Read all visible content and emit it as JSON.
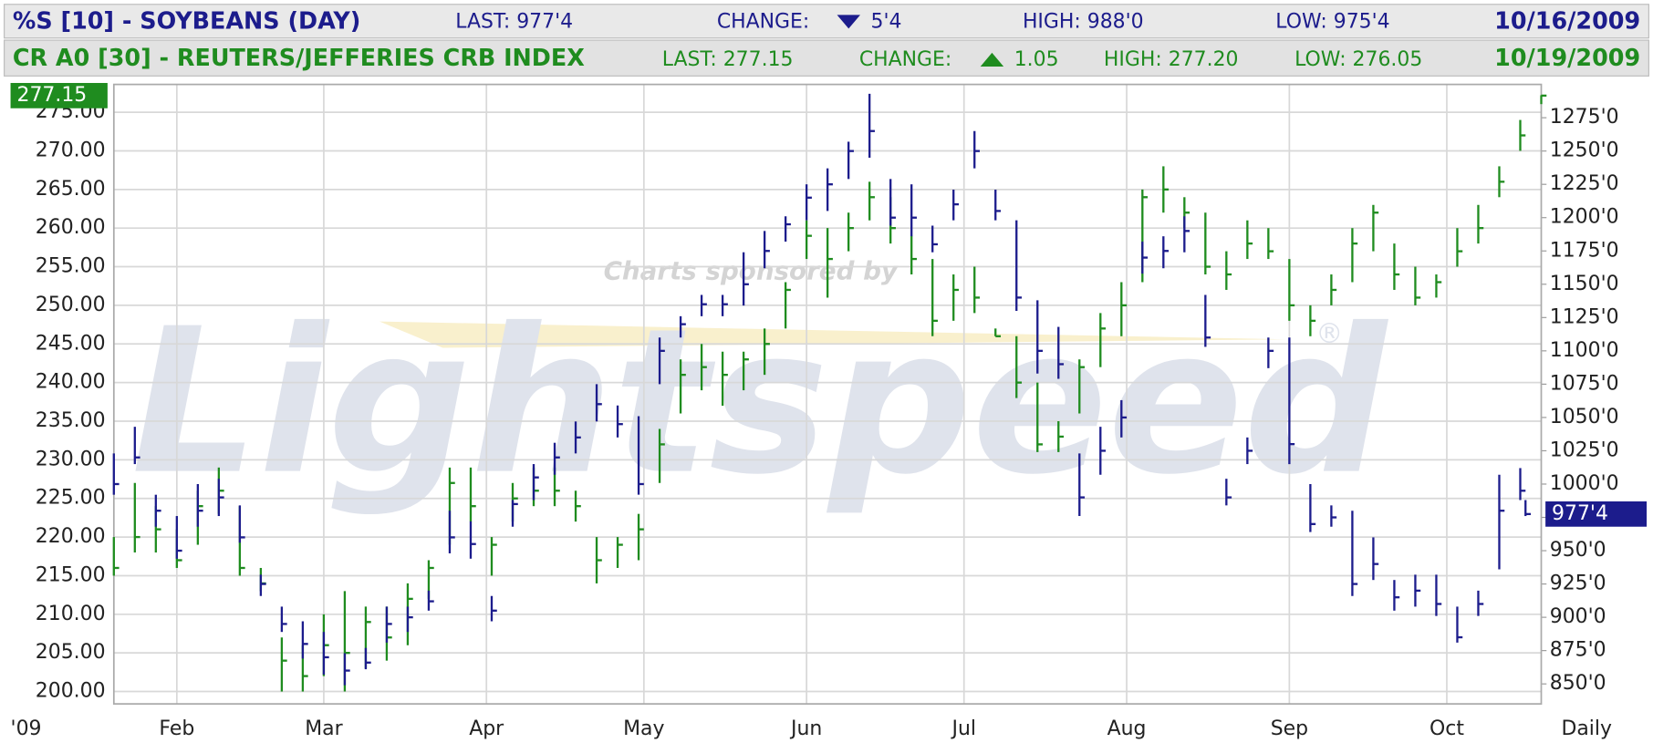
{
  "header": [
    {
      "symbol": "%S [10] - SOYBEANS (DAY)",
      "last": "LAST: 977'4",
      "change_label": "CHANGE:",
      "change": "5'4",
      "high": "HIGH: 988'0",
      "low": "LOW: 975'4",
      "date": "10/16/2009"
    },
    {
      "symbol": "CR A0 [30] - REUTERS/JEFFERIES CRB INDEX",
      "last": "LAST: 277.15",
      "change_label": "CHANGE:",
      "change": "1.05",
      "high": "HIGH: 277.20",
      "low": "LOW: 276.05",
      "date": "10/19/2009"
    }
  ],
  "chart_data": {
    "type": "ohlc",
    "watermark": "Lightspeed",
    "watermark_note": "Charts sponsored by",
    "watermark_mark": "®",
    "x_start_label": "'09",
    "x_end_label": "Daily",
    "xlim": [
      20,
      292
    ],
    "xticks": [
      {
        "value": 32,
        "label": "Feb"
      },
      {
        "value": 60,
        "label": "Mar"
      },
      {
        "value": 91,
        "label": "Apr"
      },
      {
        "value": 121,
        "label": "May"
      },
      {
        "value": 152,
        "label": "Jun"
      },
      {
        "value": 182,
        "label": "Jul"
      },
      {
        "value": 213,
        "label": "Aug"
      },
      {
        "value": 244,
        "label": "Sep"
      },
      {
        "value": 274,
        "label": "Oct"
      }
    ],
    "ylim": [
      198.4,
      278.6
    ],
    "yticks": [
      {
        "value": 200,
        "label": "200.00"
      },
      {
        "value": 205,
        "label": "205.00"
      },
      {
        "value": 210,
        "label": "210.00"
      },
      {
        "value": 215,
        "label": "215.00"
      },
      {
        "value": 220,
        "label": "220.00"
      },
      {
        "value": 225,
        "label": "225.00"
      },
      {
        "value": 230,
        "label": "230.00"
      },
      {
        "value": 235,
        "label": "235.00"
      },
      {
        "value": 240,
        "label": "240.00"
      },
      {
        "value": 245,
        "label": "245.00"
      },
      {
        "value": 250,
        "label": "250.00"
      },
      {
        "value": 255,
        "label": "255.00"
      },
      {
        "value": 260,
        "label": "260.00"
      },
      {
        "value": 265,
        "label": "265.00"
      },
      {
        "value": 270,
        "label": "270.00"
      },
      {
        "value": 275,
        "label": "275.00"
      }
    ],
    "y2lim": [
      835,
      1300
    ],
    "y2ticks": [
      {
        "value": 850,
        "label": "850'0"
      },
      {
        "value": 875,
        "label": "875'0"
      },
      {
        "value": 900,
        "label": "900'0"
      },
      {
        "value": 925,
        "label": "925'0"
      },
      {
        "value": 950,
        "label": "950'0"
      },
      {
        "value": 975,
        "label": "975'0"
      },
      {
        "value": 1000,
        "label": "1000'0"
      },
      {
        "value": 1025,
        "label": "1025'0"
      },
      {
        "value": 1050,
        "label": "1050'0"
      },
      {
        "value": 1075,
        "label": "1075'0"
      },
      {
        "value": 1100,
        "label": "1100'0"
      },
      {
        "value": 1125,
        "label": "1125'0"
      },
      {
        "value": 1150,
        "label": "1150'0"
      },
      {
        "value": 1175,
        "label": "1175'0"
      },
      {
        "value": 1200,
        "label": "1200'0"
      },
      {
        "value": 1225,
        "label": "1225'0"
      },
      {
        "value": 1250,
        "label": "1250'0"
      },
      {
        "value": 1275,
        "label": "1275'0"
      }
    ],
    "grid": true,
    "series": [
      {
        "color": "#1f8c1f",
        "axis": "y",
        "last_tag": {
          "value": 277.15,
          "label": "277.15"
        },
        "x": [
          20,
          24,
          28,
          32,
          36,
          40,
          44,
          48,
          52,
          56,
          60,
          64,
          68,
          72,
          76,
          80,
          84,
          88,
          92,
          96,
          100,
          104,
          108,
          112,
          116,
          120,
          124,
          128,
          132,
          136,
          140,
          144,
          148,
          152,
          156,
          160,
          164,
          168,
          172,
          176,
          180,
          184,
          188,
          192,
          196,
          200,
          204,
          208,
          212,
          216,
          220,
          224,
          228,
          232,
          236,
          240,
          244,
          248,
          252,
          256,
          260,
          264,
          268,
          272,
          276,
          280,
          284,
          288,
          292
        ],
        "high": [
          220,
          227,
          224,
          221,
          226,
          229,
          224,
          216,
          207,
          206,
          210,
          213,
          211,
          211,
          214,
          217,
          229,
          229,
          220,
          227,
          229,
          229,
          226,
          220,
          220,
          223,
          234,
          243,
          245,
          244,
          244,
          247,
          253,
          261,
          260,
          262,
          266,
          264,
          259,
          256,
          254,
          255,
          247,
          246,
          240,
          235,
          243,
          249,
          253,
          265,
          268,
          264,
          262,
          257,
          261,
          260,
          256,
          250,
          254,
          260,
          263,
          258,
          255,
          254,
          260,
          263,
          268,
          274,
          277.2
        ],
        "low": [
          215,
          218,
          218,
          216,
          219,
          223,
          215,
          213,
          200,
          200,
          202,
          200,
          203,
          204,
          206,
          212,
          219,
          222,
          215,
          222,
          224,
          224,
          222,
          214,
          216,
          217,
          227,
          236,
          239,
          237,
          239,
          241,
          247,
          256,
          251,
          257,
          261,
          258,
          254,
          246,
          248,
          249,
          246,
          238,
          231,
          231,
          236,
          242,
          246,
          253,
          262,
          260,
          254,
          252,
          256,
          256,
          248,
          246,
          250,
          253,
          257,
          252,
          250,
          251,
          255,
          258,
          264,
          270,
          276.05
        ],
        "close": [
          216,
          220,
          221,
          217,
          224,
          226,
          216,
          214,
          204,
          202,
          206,
          205,
          209,
          207,
          212,
          216,
          227,
          224,
          219,
          225,
          226,
          226,
          224,
          217,
          219,
          221,
          232,
          241,
          242,
          241,
          243,
          245,
          252,
          259,
          256,
          260,
          264,
          260,
          256,
          248,
          252,
          251,
          246,
          240,
          232,
          233,
          242,
          247,
          250,
          264,
          265,
          262,
          255,
          254,
          258,
          257,
          250,
          248,
          252,
          258,
          262,
          254,
          251,
          253,
          257,
          260,
          266,
          272,
          277.15
        ]
      },
      {
        "color": "#1c1c8c",
        "axis": "y2",
        "last_tag": {
          "value": 977.5,
          "label": "977'4"
        },
        "x": [
          20,
          24,
          28,
          32,
          36,
          40,
          44,
          48,
          52,
          56,
          60,
          64,
          68,
          72,
          76,
          80,
          84,
          88,
          92,
          96,
          100,
          104,
          108,
          112,
          116,
          120,
          124,
          128,
          132,
          136,
          140,
          144,
          148,
          152,
          156,
          160,
          164,
          168,
          172,
          176,
          180,
          184,
          188,
          192,
          196,
          200,
          204,
          208,
          212,
          216,
          220,
          224,
          228,
          232,
          236,
          240,
          244,
          248,
          252,
          256,
          260,
          264,
          268,
          272,
          276,
          280,
          284,
          288,
          289
        ],
        "high": [
          1023,
          1043,
          992,
          976,
          1000,
          1004,
          984,
          932,
          908,
          897,
          889,
          873,
          877,
          908,
          908,
          920,
          980,
          972,
          916,
          988,
          1015,
          1031,
          1047,
          1075,
          1059,
          1051,
          1110,
          1126,
          1142,
          1142,
          1174,
          1190,
          1201,
          1225,
          1237,
          1257,
          1293,
          1229,
          1225,
          1194,
          1221,
          1265,
          1221,
          1198,
          1138,
          1118,
          1023,
          1043,
          1063,
          1182,
          1186,
          1201,
          1142,
          1004,
          1035,
          1110,
          1110,
          1000,
          984,
          980,
          960,
          928,
          932,
          932,
          908,
          920,
          1007,
          1012,
          988
        ],
        "low": [
          992,
          1015,
          968,
          944,
          968,
          976,
          956,
          916,
          889,
          869,
          857,
          849,
          861,
          881,
          889,
          905,
          948,
          944,
          897,
          968,
          988,
          1007,
          1023,
          1047,
          1035,
          992,
          1075,
          1110,
          1126,
          1126,
          1134,
          1162,
          1182,
          1198,
          1205,
          1229,
          1245,
          1194,
          1186,
          1174,
          1198,
          1237,
          1198,
          1130,
          1083,
          1079,
          976,
          1007,
          1035,
          1158,
          1162,
          1174,
          1103,
          984,
          1015,
          1087,
          1015,
          964,
          968,
          916,
          928,
          905,
          908,
          901,
          881,
          901,
          936,
          988,
          976
        ],
        "close": [
          1000,
          1020,
          980,
          950,
          980,
          990,
          960,
          925,
          895,
          880,
          870,
          860,
          866,
          895,
          900,
          912,
          960,
          955,
          905,
          985,
          1005,
          1020,
          1035,
          1060,
          1045,
          1000,
          1100,
          1120,
          1135,
          1135,
          1150,
          1175,
          1195,
          1215,
          1225,
          1250,
          1265,
          1200,
          1200,
          1180,
          1210,
          1250,
          1205,
          1140,
          1100,
          1090,
          990,
          1025,
          1050,
          1170,
          1175,
          1190,
          1110,
          990,
          1025,
          1100,
          1030,
          970,
          975,
          925,
          940,
          915,
          920,
          910,
          885,
          910,
          980,
          995,
          977.5
        ]
      }
    ]
  }
}
